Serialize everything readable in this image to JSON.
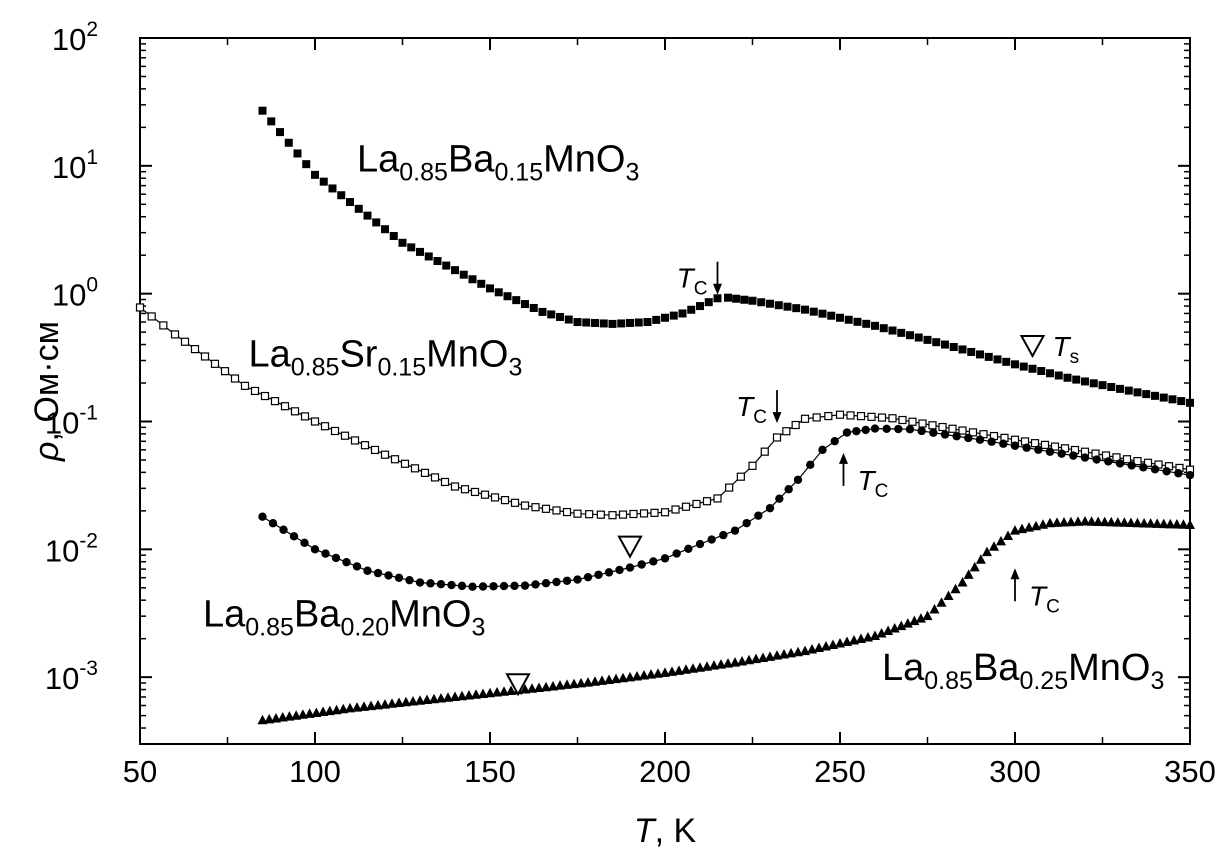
{
  "chart_data": {
    "type": "scatter",
    "xlabel": {
      "var": "T",
      "rest": ", K"
    },
    "ylabel": {
      "var": "ρ",
      "rest": ", Ом·см"
    },
    "xlim": [
      50,
      350
    ],
    "ylim": [
      0.0003,
      100
    ],
    "yscale": "log",
    "grid": false,
    "x_ticks": [
      "50",
      "100",
      "150",
      "200",
      "250",
      "300",
      "350"
    ],
    "y_ticks": [
      {
        "base": "10",
        "exp": "-3",
        "value": 0.001
      },
      {
        "base": "10",
        "exp": "-2",
        "value": 0.01
      },
      {
        "base": "10",
        "exp": "-1",
        "value": 0.1
      },
      {
        "base": "10",
        "exp": "0",
        "value": 1
      },
      {
        "base": "10",
        "exp": "1",
        "value": 10
      },
      {
        "base": "10",
        "exp": "2",
        "value": 100
      }
    ],
    "series": [
      {
        "name": "La0.85Ba0.15MnO3",
        "marker": "filled-square",
        "line": false,
        "points": [
          [
            85,
            27
          ],
          [
            100,
            8.5
          ],
          [
            125,
            2.5
          ],
          [
            150,
            1.1
          ],
          [
            165,
            0.72
          ],
          [
            175,
            0.6
          ],
          [
            185,
            0.58
          ],
          [
            195,
            0.6
          ],
          [
            205,
            0.7
          ],
          [
            210,
            0.8
          ],
          [
            215,
            0.92
          ],
          [
            218,
            0.93
          ],
          [
            225,
            0.88
          ],
          [
            240,
            0.75
          ],
          [
            260,
            0.56
          ],
          [
            280,
            0.4
          ],
          [
            300,
            0.28
          ],
          [
            315,
            0.22
          ],
          [
            330,
            0.18
          ],
          [
            350,
            0.14
          ]
        ]
      },
      {
        "name": "La0.85Sr0.15MnO3",
        "marker": "open-square",
        "line": true,
        "points": [
          [
            50,
            0.78
          ],
          [
            60,
            0.48
          ],
          [
            80,
            0.19
          ],
          [
            100,
            0.1
          ],
          [
            120,
            0.055
          ],
          [
            140,
            0.031
          ],
          [
            160,
            0.022
          ],
          [
            175,
            0.019
          ],
          [
            185,
            0.0185
          ],
          [
            200,
            0.0195
          ],
          [
            215,
            0.025
          ],
          [
            225,
            0.045
          ],
          [
            232,
            0.075
          ],
          [
            240,
            0.105
          ],
          [
            250,
            0.113
          ],
          [
            265,
            0.106
          ],
          [
            285,
            0.085
          ],
          [
            300,
            0.072
          ],
          [
            320,
            0.058
          ],
          [
            335,
            0.049
          ],
          [
            350,
            0.042
          ]
        ]
      },
      {
        "name": "La0.85Ba0.20MnO3",
        "marker": "filled-circle",
        "line": true,
        "points": [
          [
            85,
            0.018
          ],
          [
            100,
            0.01
          ],
          [
            115,
            0.0068
          ],
          [
            130,
            0.0055
          ],
          [
            145,
            0.0051
          ],
          [
            160,
            0.0052
          ],
          [
            175,
            0.0058
          ],
          [
            190,
            0.0072
          ],
          [
            200,
            0.0085
          ],
          [
            210,
            0.011
          ],
          [
            220,
            0.014
          ],
          [
            230,
            0.021
          ],
          [
            238,
            0.035
          ],
          [
            245,
            0.06
          ],
          [
            252,
            0.082
          ],
          [
            260,
            0.088
          ],
          [
            270,
            0.087
          ],
          [
            290,
            0.072
          ],
          [
            310,
            0.058
          ],
          [
            330,
            0.047
          ],
          [
            350,
            0.038
          ]
        ]
      },
      {
        "name": "La0.85Ba0.25MnO3",
        "marker": "filled-triangle",
        "line": false,
        "points": [
          [
            85,
            0.00046
          ],
          [
            110,
            0.00057
          ],
          [
            140,
            0.0007
          ],
          [
            160,
            0.0008
          ],
          [
            180,
            0.00092
          ],
          [
            200,
            0.00108
          ],
          [
            220,
            0.0013
          ],
          [
            240,
            0.0016
          ],
          [
            260,
            0.0021
          ],
          [
            275,
            0.003
          ],
          [
            285,
            0.0055
          ],
          [
            292,
            0.0095
          ],
          [
            300,
            0.014
          ],
          [
            310,
            0.016
          ],
          [
            320,
            0.0165
          ],
          [
            335,
            0.016
          ],
          [
            350,
            0.0155
          ]
        ]
      }
    ],
    "annotations": [
      {
        "series": "La0.85Ba0.15MnO3",
        "label": "La",
        "s1": "0.85",
        "m1": "Ba",
        "s2": "0.15",
        "m2": "MnO",
        "s3": "3",
        "x": 112,
        "y": 9.0
      },
      {
        "series": "La0.85Sr0.15MnO3",
        "label": "La",
        "s1": "0.85",
        "m1": "Sr",
        "s2": "0.15",
        "m2": "MnO",
        "s3": "3",
        "x": 81,
        "y": 0.27
      },
      {
        "series": "La0.85Ba0.20MnO3",
        "label": "La",
        "s1": "0.85",
        "m1": "Ba",
        "s2": "0.20",
        "m2": "MnO",
        "s3": "3",
        "x": 68,
        "y": 0.0025
      },
      {
        "series": "La0.85Ba0.25MnO3",
        "label": "La",
        "s1": "0.85",
        "m1": "Ba",
        "s2": "0.25",
        "m2": "MnO",
        "s3": "3",
        "x": 262,
        "y": 0.00095
      }
    ],
    "markers": [
      {
        "kind": "Tc",
        "text": "T",
        "sub": "C",
        "x": 215,
        "y": 0.93,
        "arrow": "down",
        "label_side": "left"
      },
      {
        "kind": "Tc",
        "text": "T",
        "sub": "C",
        "x": 232,
        "y": 0.092,
        "arrow": "down",
        "label_side": "left"
      },
      {
        "kind": "Tc",
        "text": "T",
        "sub": "C",
        "x": 251,
        "y": 0.06,
        "arrow": "up",
        "label_side": "right"
      },
      {
        "kind": "Tc",
        "text": "T",
        "sub": "C",
        "x": 300,
        "y": 0.0075,
        "arrow": "up",
        "label_side": "right"
      },
      {
        "kind": "Ts",
        "text": "T",
        "sub": "s",
        "x": 305,
        "y": 0.39,
        "arrow": "none",
        "label_side": "right"
      },
      {
        "kind": "Ts",
        "text": "",
        "sub": "",
        "x": 190,
        "y": 0.0105,
        "arrow": "none",
        "label_side": "none"
      },
      {
        "kind": "Ts",
        "text": "",
        "sub": "",
        "x": 158,
        "y": 0.00088,
        "arrow": "none",
        "label_side": "none"
      }
    ]
  }
}
